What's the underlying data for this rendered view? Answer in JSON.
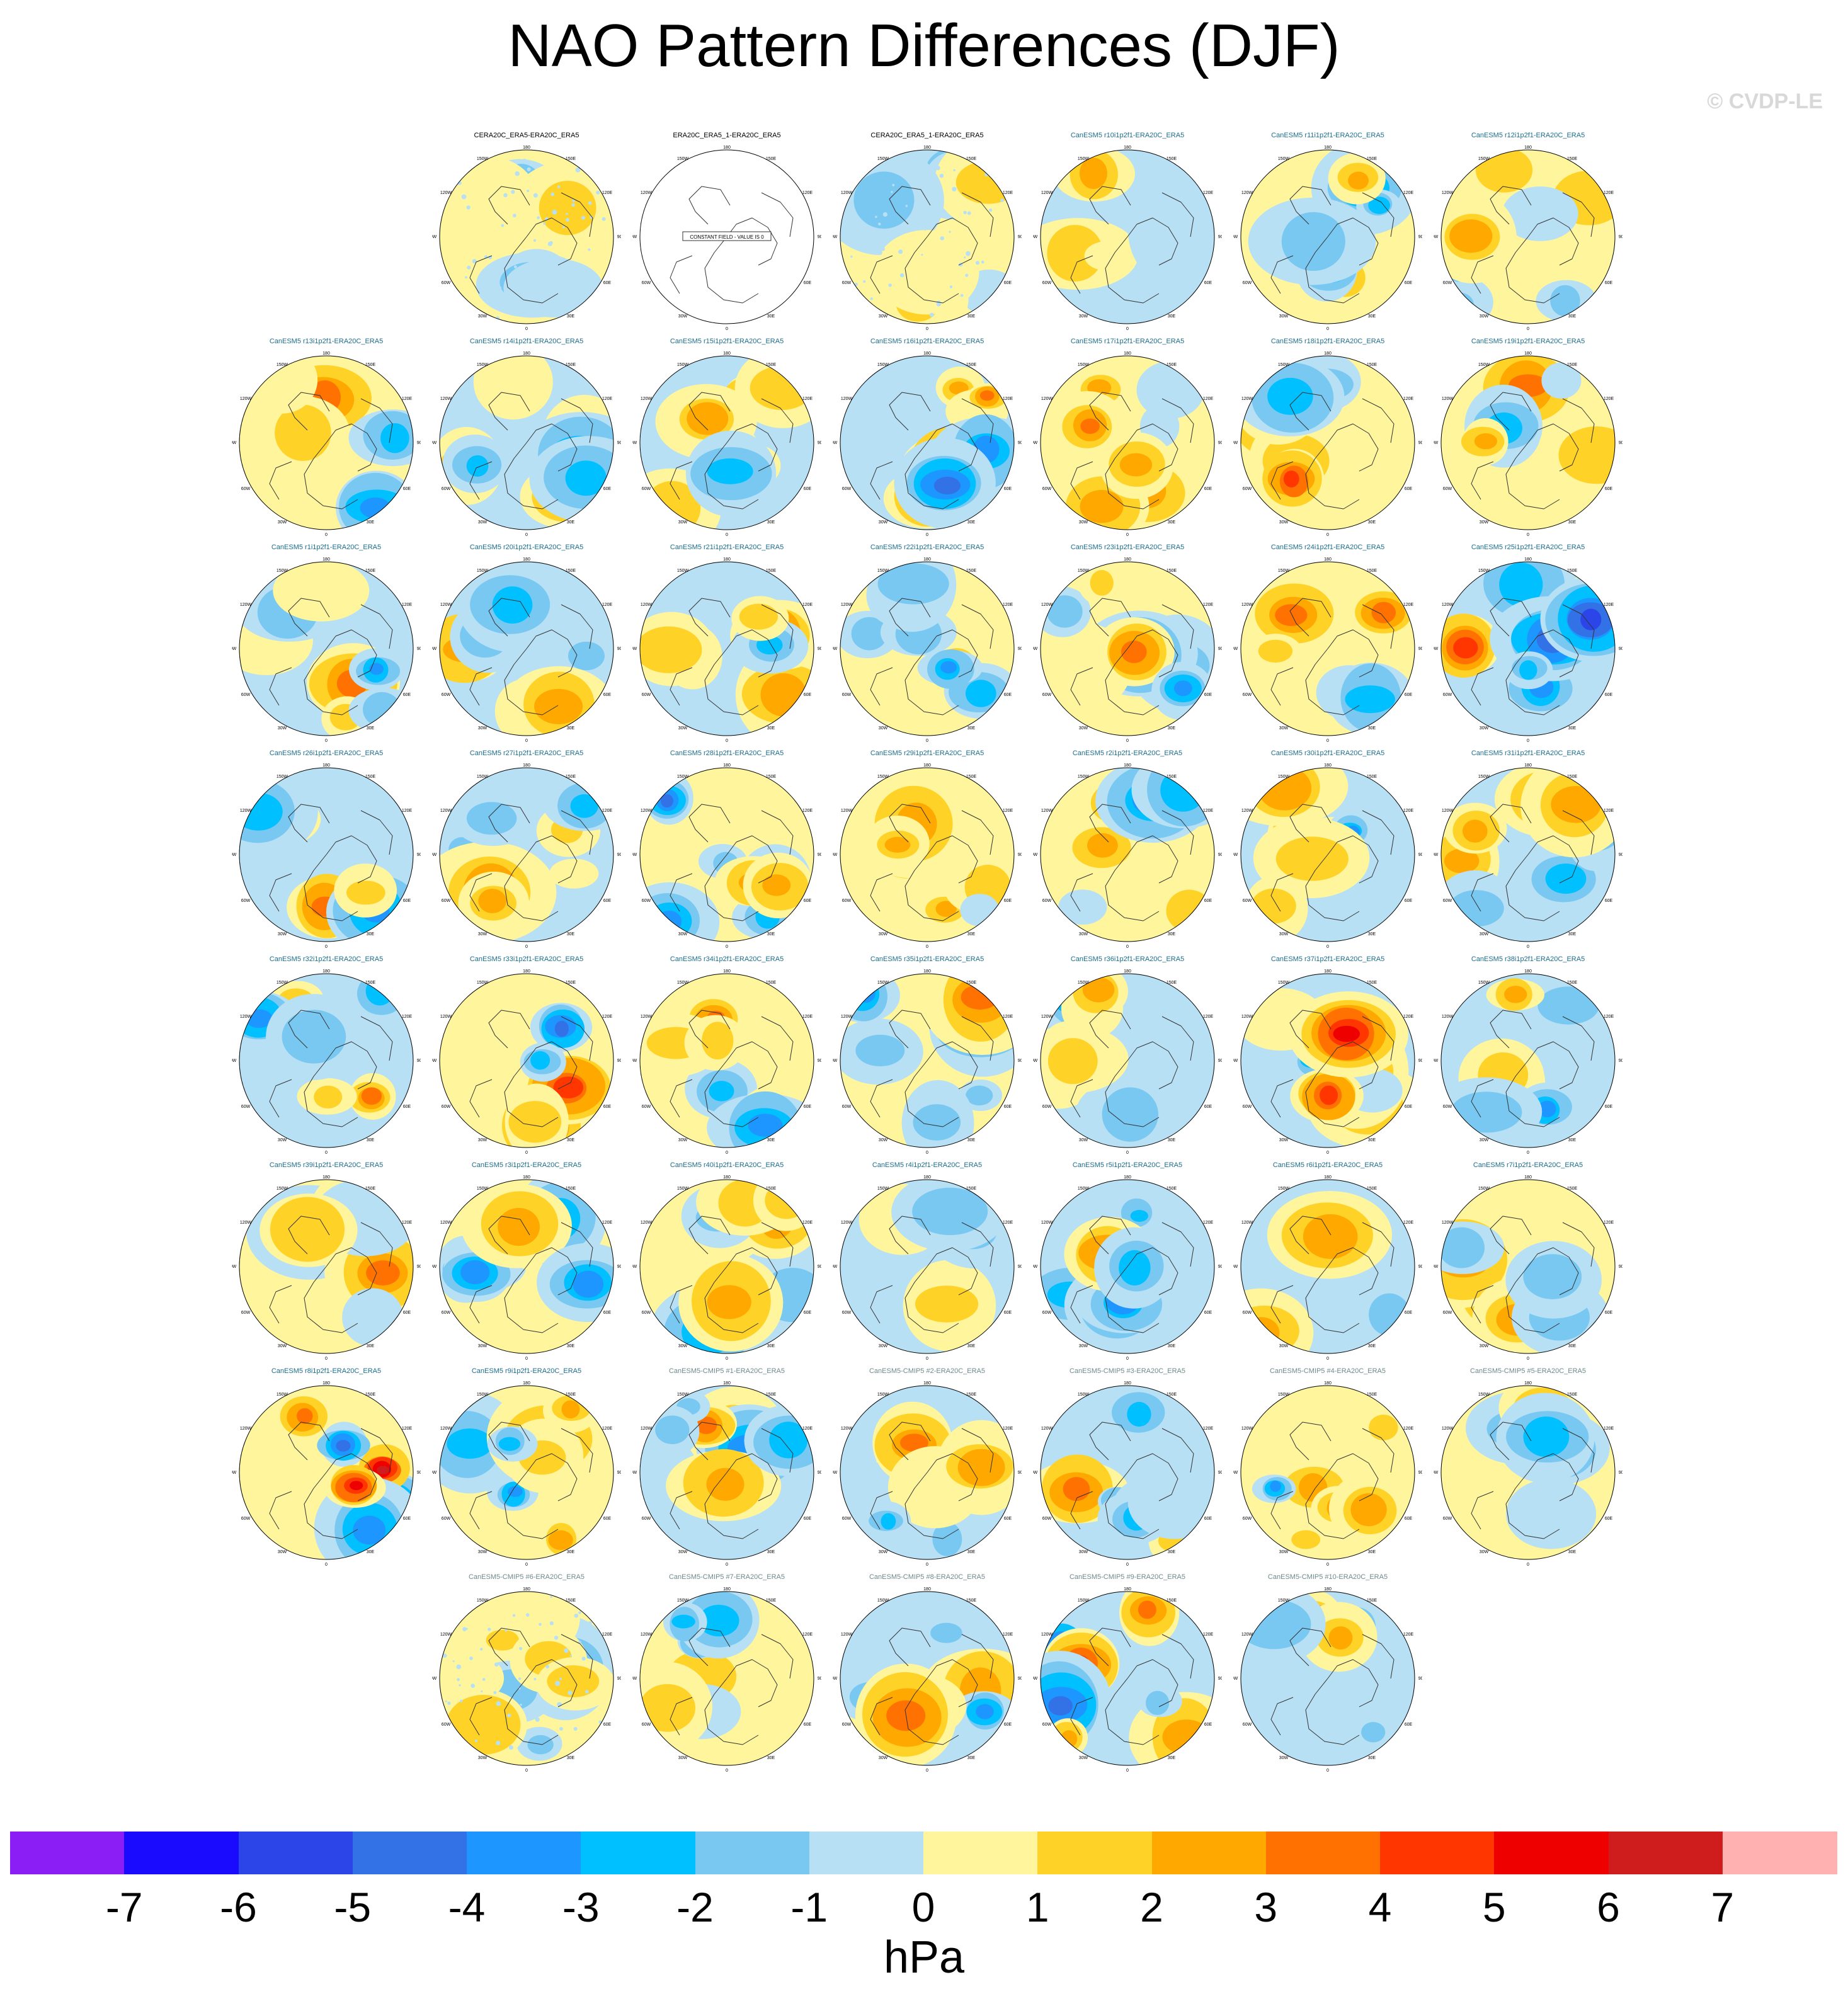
{
  "title": "NAO Pattern Differences (DJF)",
  "copyright": "© CVDP-LE",
  "units": "hPa",
  "colors": {
    "black_title": "#000000",
    "teal_title": "#1c6e8c",
    "gray_title": "#6e8a8c",
    "land_line": "#333333"
  },
  "colorbar": {
    "colors": [
      "#8a1ef5",
      "#1a0bff",
      "#2b45e8",
      "#3371e6",
      "#1e96ff",
      "#00c0ff",
      "#78c8f2",
      "#b8e0f5",
      "#fff59c",
      "#ffd227",
      "#ffa800",
      "#ff7100",
      "#ff3600",
      "#ee0000",
      "#cf1d1d",
      "#ffb0b0"
    ],
    "labels": [
      "-7",
      "-6",
      "-5",
      "-4",
      "-3",
      "-2",
      "-1",
      "0",
      "1",
      "2",
      "3",
      "4",
      "5",
      "6",
      "7"
    ]
  },
  "panels": [
    {
      "row": 0,
      "col": 2,
      "title": "CERA20C_ERA5-ERA20C_ERA5",
      "title_style": "black",
      "seed": 1,
      "kind": "weak"
    },
    {
      "row": 0,
      "col": 3,
      "title": "ERA20C_ERA5_1-ERA20C_ERA5",
      "title_style": "black",
      "seed": 2,
      "kind": "blank",
      "note": "CONSTANT FIELD - VALUE IS 0"
    },
    {
      "row": 0,
      "col": 4,
      "title": "CERA20C_ERA5_1-ERA20C_ERA5",
      "title_style": "black",
      "seed": 3,
      "kind": "weak"
    },
    {
      "row": 0,
      "col": 5,
      "title": "CanESM5 r10i1p2f1-ERA20C_ERA5",
      "title_style": "teal",
      "seed": 4,
      "kind": "pattern"
    },
    {
      "row": 0,
      "col": 6,
      "title": "CanESM5 r11i1p2f1-ERA20C_ERA5",
      "title_style": "teal",
      "seed": 5,
      "kind": "pattern"
    },
    {
      "row": 0,
      "col": 7,
      "title": "CanESM5 r12i1p2f1-ERA20C_ERA5",
      "title_style": "teal",
      "seed": 6,
      "kind": "pattern"
    },
    {
      "row": 1,
      "col": 1,
      "title": "CanESM5 r13i1p2f1-ERA20C_ERA5",
      "title_style": "teal",
      "seed": 7,
      "kind": "pattern"
    },
    {
      "row": 1,
      "col": 2,
      "title": "CanESM5 r14i1p2f1-ERA20C_ERA5",
      "title_style": "teal",
      "seed": 8,
      "kind": "pattern"
    },
    {
      "row": 1,
      "col": 3,
      "title": "CanESM5 r15i1p2f1-ERA20C_ERA5",
      "title_style": "teal",
      "seed": 9,
      "kind": "pattern"
    },
    {
      "row": 1,
      "col": 4,
      "title": "CanESM5 r16i1p2f1-ERA20C_ERA5",
      "title_style": "teal",
      "seed": 10,
      "kind": "strong"
    },
    {
      "row": 1,
      "col": 5,
      "title": "CanESM5 r17i1p2f1-ERA20C_ERA5",
      "title_style": "teal",
      "seed": 11,
      "kind": "pattern"
    },
    {
      "row": 1,
      "col": 6,
      "title": "CanESM5 r18i1p2f1-ERA20C_ERA5",
      "title_style": "teal",
      "seed": 12,
      "kind": "strong"
    },
    {
      "row": 1,
      "col": 7,
      "title": "CanESM5 r19i1p2f1-ERA20C_ERA5",
      "title_style": "teal",
      "seed": 13,
      "kind": "pattern"
    },
    {
      "row": 2,
      "col": 1,
      "title": "CanESM5 r1i1p2f1-ERA20C_ERA5",
      "title_style": "teal",
      "seed": 14,
      "kind": "pattern"
    },
    {
      "row": 2,
      "col": 2,
      "title": "CanESM5 r20i1p2f1-ERA20C_ERA5",
      "title_style": "teal",
      "seed": 15,
      "kind": "pattern"
    },
    {
      "row": 2,
      "col": 3,
      "title": "CanESM5 r21i1p2f1-ERA20C_ERA5",
      "title_style": "teal",
      "seed": 16,
      "kind": "pattern"
    },
    {
      "row": 2,
      "col": 4,
      "title": "CanESM5 r22i1p2f1-ERA20C_ERA5",
      "title_style": "teal",
      "seed": 17,
      "kind": "pattern"
    },
    {
      "row": 2,
      "col": 5,
      "title": "CanESM5 r23i1p2f1-ERA20C_ERA5",
      "title_style": "teal",
      "seed": 18,
      "kind": "pattern"
    },
    {
      "row": 2,
      "col": 6,
      "title": "CanESM5 r24i1p2f1-ERA20C_ERA5",
      "title_style": "teal",
      "seed": 19,
      "kind": "strong"
    },
    {
      "row": 2,
      "col": 7,
      "title": "CanESM5 r25i1p2f1-ERA20C_ERA5",
      "title_style": "teal",
      "seed": 20,
      "kind": "strong"
    },
    {
      "row": 3,
      "col": 1,
      "title": "CanESM5 r26i1p2f1-ERA20C_ERA5",
      "title_style": "teal",
      "seed": 21,
      "kind": "pattern"
    },
    {
      "row": 3,
      "col": 2,
      "title": "CanESM5 r27i1p2f1-ERA20C_ERA5",
      "title_style": "teal",
      "seed": 22,
      "kind": "pattern"
    },
    {
      "row": 3,
      "col": 3,
      "title": "CanESM5 r28i1p2f1-ERA20C_ERA5",
      "title_style": "teal",
      "seed": 23,
      "kind": "strong"
    },
    {
      "row": 3,
      "col": 4,
      "title": "CanESM5 r29i1p2f1-ERA20C_ERA5",
      "title_style": "teal",
      "seed": 24,
      "kind": "pattern"
    },
    {
      "row": 3,
      "col": 5,
      "title": "CanESM5 r2i1p2f1-ERA20C_ERA5",
      "title_style": "teal",
      "seed": 25,
      "kind": "pattern"
    },
    {
      "row": 3,
      "col": 6,
      "title": "CanESM5 r30i1p2f1-ERA20C_ERA5",
      "title_style": "teal",
      "seed": 26,
      "kind": "pattern"
    },
    {
      "row": 3,
      "col": 7,
      "title": "CanESM5 r31i1p2f1-ERA20C_ERA5",
      "title_style": "teal",
      "seed": 27,
      "kind": "pattern"
    },
    {
      "row": 4,
      "col": 1,
      "title": "CanESM5 r32i1p2f1-ERA20C_ERA5",
      "title_style": "teal",
      "seed": 28,
      "kind": "pattern"
    },
    {
      "row": 4,
      "col": 2,
      "title": "CanESM5 r33i1p2f1-ERA20C_ERA5",
      "title_style": "teal",
      "seed": 29,
      "kind": "strong"
    },
    {
      "row": 4,
      "col": 3,
      "title": "CanESM5 r34i1p2f1-ERA20C_ERA5",
      "title_style": "teal",
      "seed": 30,
      "kind": "pattern"
    },
    {
      "row": 4,
      "col": 4,
      "title": "CanESM5 r35i1p2f1-ERA20C_ERA5",
      "title_style": "teal",
      "seed": 31,
      "kind": "pattern"
    },
    {
      "row": 4,
      "col": 5,
      "title": "CanESM5 r36i1p2f1-ERA20C_ERA5",
      "title_style": "teal",
      "seed": 32,
      "kind": "pattern"
    },
    {
      "row": 4,
      "col": 6,
      "title": "CanESM5 r37i1p2f1-ERA20C_ERA5",
      "title_style": "teal",
      "seed": 33,
      "kind": "strong"
    },
    {
      "row": 4,
      "col": 7,
      "title": "CanESM5 r38i1p2f1-ERA20C_ERA5",
      "title_style": "teal",
      "seed": 34,
      "kind": "pattern"
    },
    {
      "row": 5,
      "col": 1,
      "title": "CanESM5 r39i1p2f1-ERA20C_ERA5",
      "title_style": "teal",
      "seed": 35,
      "kind": "pattern"
    },
    {
      "row": 5,
      "col": 2,
      "title": "CanESM5 r3i1p2f1-ERA20C_ERA5",
      "title_style": "teal",
      "seed": 36,
      "kind": "pattern"
    },
    {
      "row": 5,
      "col": 3,
      "title": "CanESM5 r40i1p2f1-ERA20C_ERA5",
      "title_style": "teal",
      "seed": 37,
      "kind": "pattern"
    },
    {
      "row": 5,
      "col": 4,
      "title": "CanESM5 r4i1p2f1-ERA20C_ERA5",
      "title_style": "teal",
      "seed": 38,
      "kind": "pattern"
    },
    {
      "row": 5,
      "col": 5,
      "title": "CanESM5 r5i1p2f1-ERA20C_ERA5",
      "title_style": "teal",
      "seed": 39,
      "kind": "pattern"
    },
    {
      "row": 5,
      "col": 6,
      "title": "CanESM5 r6i1p2f1-ERA20C_ERA5",
      "title_style": "teal",
      "seed": 40,
      "kind": "pattern"
    },
    {
      "row": 5,
      "col": 7,
      "title": "CanESM5 r7i1p2f1-ERA20C_ERA5",
      "title_style": "teal",
      "seed": 41,
      "kind": "pattern"
    },
    {
      "row": 6,
      "col": 1,
      "title": "CanESM5 r8i1p2f1-ERA20C_ERA5",
      "title_style": "teal",
      "seed": 42,
      "kind": "extreme"
    },
    {
      "row": 6,
      "col": 2,
      "title": "CanESM5 r9i1p2f1-ERA20C_ERA5",
      "title_style": "teal",
      "seed": 43,
      "kind": "pattern"
    },
    {
      "row": 6,
      "col": 3,
      "title": "CanESM5-CMIP5 #1-ERA20C_ERA5",
      "title_style": "gray",
      "seed": 44,
      "kind": "pattern"
    },
    {
      "row": 6,
      "col": 4,
      "title": "CanESM5-CMIP5 #2-ERA20C_ERA5",
      "title_style": "gray",
      "seed": 45,
      "kind": "pattern"
    },
    {
      "row": 6,
      "col": 5,
      "title": "CanESM5-CMIP5 #3-ERA20C_ERA5",
      "title_style": "gray",
      "seed": 46,
      "kind": "pattern"
    },
    {
      "row": 6,
      "col": 6,
      "title": "CanESM5-CMIP5 #4-ERA20C_ERA5",
      "title_style": "gray",
      "seed": 47,
      "kind": "pattern"
    },
    {
      "row": 6,
      "col": 7,
      "title": "CanESM5-CMIP5 #5-ERA20C_ERA5",
      "title_style": "gray",
      "seed": 48,
      "kind": "pattern"
    },
    {
      "row": 7,
      "col": 2,
      "title": "CanESM5-CMIP5 #6-ERA20C_ERA5",
      "title_style": "gray",
      "seed": 49,
      "kind": "weak"
    },
    {
      "row": 7,
      "col": 3,
      "title": "CanESM5-CMIP5 #7-ERA20C_ERA5",
      "title_style": "gray",
      "seed": 50,
      "kind": "pattern"
    },
    {
      "row": 7,
      "col": 4,
      "title": "CanESM5-CMIP5 #8-ERA20C_ERA5",
      "title_style": "gray",
      "seed": 51,
      "kind": "pattern"
    },
    {
      "row": 7,
      "col": 5,
      "title": "CanESM5-CMIP5 #9-ERA20C_ERA5",
      "title_style": "gray",
      "seed": 52,
      "kind": "strong"
    },
    {
      "row": 7,
      "col": 6,
      "title": "CanESM5-CMIP5 #10-ERA20C_ERA5",
      "title_style": "gray",
      "seed": 53,
      "kind": "pattern"
    }
  ],
  "map_labels": {
    "top": "180",
    "bottom": "0",
    "left": "90W",
    "right": "90E",
    "upper_left_1": "150W",
    "upper_left_2": "120W",
    "upper_right_1": "150E",
    "upper_right_2": "120E",
    "lower_left_1": "60W",
    "lower_left_2": "30W",
    "lower_right_1": "60E",
    "lower_right_2": "30E"
  }
}
